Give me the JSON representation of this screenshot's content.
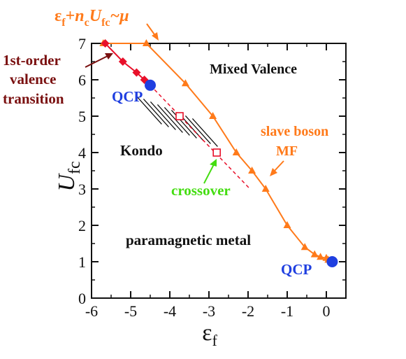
{
  "chart_data": {
    "type": "scatter",
    "xlabel": "ε_f",
    "ylabel": "U_fc",
    "xlim": [
      -6,
      0.5
    ],
    "ylim": [
      0,
      7
    ],
    "x_ticks": [
      "-6",
      "-5",
      "-4",
      "-3",
      "-2",
      "-1",
      "0"
    ],
    "y_ticks": [
      "0",
      "1",
      "2",
      "3",
      "4",
      "5",
      "6",
      "7"
    ],
    "series": [
      {
        "name": "slave boson MF",
        "marker": "triangle",
        "color": "#ff7a1a",
        "x": [
          -5.7,
          -4.6,
          -3.6,
          -2.9,
          -2.3,
          -1.9,
          -1.55,
          -1.0,
          -0.55,
          -0.3,
          -0.15,
          0.0,
          0.05
        ],
        "y": [
          7.0,
          7.0,
          5.9,
          5.0,
          4.0,
          3.5,
          3.0,
          2.0,
          1.4,
          1.2,
          1.13,
          1.1,
          1.05
        ]
      },
      {
        "name": "1st-order valence transition",
        "marker": "diamond",
        "color": "#e8102a",
        "x": [
          -5.65,
          -5.2,
          -4.85,
          -4.65
        ],
        "y": [
          7.0,
          6.5,
          6.2,
          6.0
        ]
      },
      {
        "name": "crossover",
        "marker": "open-square",
        "color": "#e8102a",
        "x": [
          -3.75,
          -2.8
        ],
        "y": [
          5.0,
          4.0
        ]
      },
      {
        "name": "QCP",
        "marker": "circle",
        "color": "#1f3fe0",
        "x": [
          -4.5,
          0.15
        ],
        "y": [
          5.85,
          1.0
        ]
      }
    ],
    "dashed_crossover_line": {
      "x": [
        -4.5,
        -1.95
      ],
      "y": [
        5.85,
        3.0
      ]
    },
    "hatched_region_label": "Kondo"
  },
  "labels": {
    "top_formula_main": "ε",
    "top_formula_sub1": "f",
    "top_formula_plus": "+",
    "top_formula_n": "n",
    "top_formula_sub2": "c",
    "top_formula_U": "U",
    "top_formula_sub3": "fc",
    "top_formula_tail": "~μ",
    "first_order_line1": "1st-order",
    "first_order_line2": "valence",
    "first_order_line3": "transition",
    "mixed_valence": "Mixed Valence",
    "qcp_left": "QCP",
    "qcp_right": "QCP",
    "kondo": "Kondo",
    "crossover": "crossover",
    "slave_boson": "slave boson",
    "mf": "MF",
    "paramagnetic": "paramagnetic metal",
    "ylabel_main": "U",
    "ylabel_sub": "fc",
    "xlabel_main": "ε",
    "xlabel_sub": "f"
  },
  "colors": {
    "orange": "#ff7a1a",
    "dark_red": "#7a1010",
    "red": "#e8102a",
    "blue": "#1f3fe0",
    "green": "#44dd11",
    "black": "#111111"
  }
}
